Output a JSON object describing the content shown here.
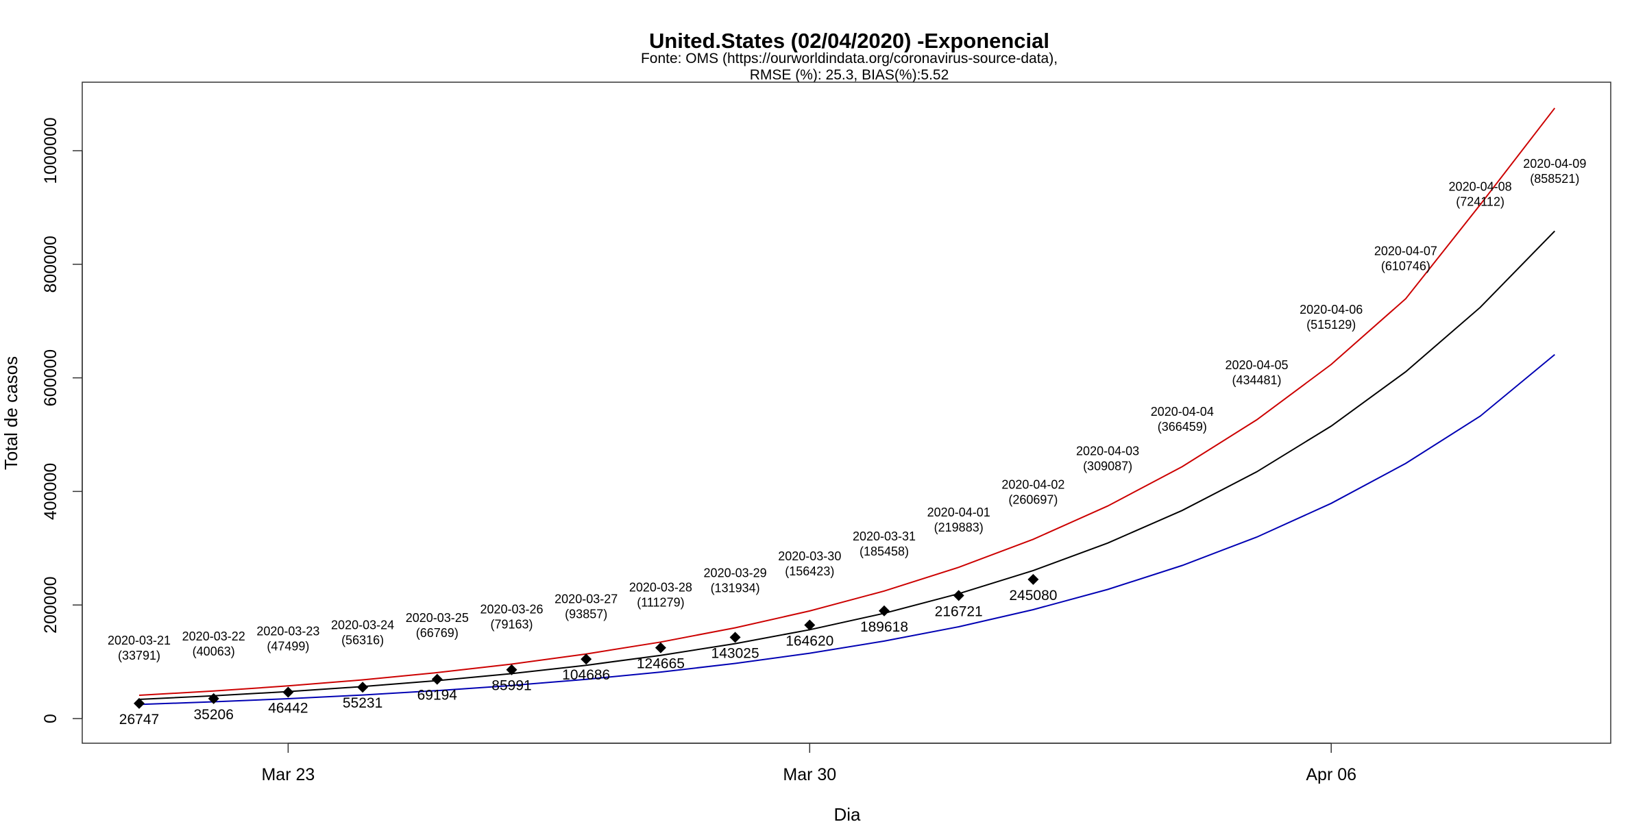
{
  "chart_data": {
    "type": "line",
    "title": "United.States (02/04/2020) -Exponencial",
    "subtitle_line1": "Fonte: OMS (https://ourworldindata.org/coronavirus-source-data),",
    "subtitle_line2": "RMSE (%): 25.3, BIAS(%):5.52",
    "xlabel": "Dia",
    "ylabel": "Total de casos",
    "x_start": "2020-03-21",
    "x_tick_labels": [
      {
        "date": "2020-03-23",
        "label": "Mar 23"
      },
      {
        "date": "2020-03-30",
        "label": "Mar 30"
      },
      {
        "date": "2020-04-06",
        "label": "Apr 06"
      }
    ],
    "y_ticks": [
      0,
      200000,
      400000,
      600000,
      800000,
      1000000
    ],
    "y_tick_labels": [
      "0",
      "200000",
      "400000",
      "600000",
      "800000",
      "1000000"
    ],
    "ylim": [
      -45000,
      1120000
    ],
    "observed": {
      "dates": [
        "2020-03-21",
        "2020-03-22",
        "2020-03-23",
        "2020-03-24",
        "2020-03-25",
        "2020-03-26",
        "2020-03-27",
        "2020-03-28",
        "2020-03-29",
        "2020-03-30",
        "2020-03-31",
        "2020-04-01",
        "2020-04-02"
      ],
      "values": [
        26747,
        35206,
        46442,
        55231,
        69194,
        85991,
        104686,
        124665,
        143025,
        164620,
        189618,
        216721,
        245080
      ],
      "labels": [
        "26747",
        "35206",
        "46442",
        "55231",
        "69194",
        "85991",
        "104686",
        "124665",
        "143025",
        "164620",
        "189618",
        "216721",
        "245080"
      ]
    },
    "predicted": {
      "dates": [
        "2020-03-21",
        "2020-03-22",
        "2020-03-23",
        "2020-03-24",
        "2020-03-25",
        "2020-03-26",
        "2020-03-27",
        "2020-03-28",
        "2020-03-29",
        "2020-03-30",
        "2020-03-31",
        "2020-04-01",
        "2020-04-02",
        "2020-04-03",
        "2020-04-04",
        "2020-04-05",
        "2020-04-06",
        "2020-04-07",
        "2020-04-08",
        "2020-04-09"
      ],
      "values": [
        33791,
        40063,
        47499,
        56316,
        66769,
        79163,
        93857,
        111279,
        131934,
        156423,
        185458,
        219883,
        260697,
        309087,
        366459,
        434481,
        515129,
        610746,
        724112,
        858521
      ],
      "labels": [
        {
          "date": "2020-03-21",
          "value": "(33791)"
        },
        {
          "date": "2020-03-22",
          "value": "(40063)"
        },
        {
          "date": "2020-03-23",
          "value": "(47499)"
        },
        {
          "date": "2020-03-24",
          "value": "(56316)"
        },
        {
          "date": "2020-03-25",
          "value": "(66769)"
        },
        {
          "date": "2020-03-26",
          "value": "(79163)"
        },
        {
          "date": "2020-03-27",
          "value": "(93857)"
        },
        {
          "date": "2020-03-28",
          "value": "(111279)"
        },
        {
          "date": "2020-03-29",
          "value": "(131934)"
        },
        {
          "date": "2020-03-30",
          "value": "(156423)"
        },
        {
          "date": "2020-03-31",
          "value": "(185458)"
        },
        {
          "date": "2020-04-01",
          "value": "(219883)"
        },
        {
          "date": "2020-04-02",
          "value": "(260697)"
        },
        {
          "date": "2020-04-03",
          "value": "(309087)"
        },
        {
          "date": "2020-04-04",
          "value": "(366459)"
        },
        {
          "date": "2020-04-05",
          "value": "(434481)"
        },
        {
          "date": "2020-04-06",
          "value": "(515129)"
        },
        {
          "date": "2020-04-07",
          "value": "(610746)"
        },
        {
          "date": "2020-04-08",
          "value": "(724112)"
        },
        {
          "date": "2020-04-09",
          "value": "(858521)"
        }
      ]
    },
    "upper_bound": {
      "color": "#cc0000",
      "values": [
        41000,
        48500,
        57500,
        68200,
        80900,
        95900,
        113700,
        134800,
        159800,
        189500,
        224600,
        266300,
        315700,
        374300,
        443700,
        526000,
        623600,
        739300,
        905000,
        1075000
      ]
    },
    "lower_bound": {
      "color": "#0000b3",
      "values": [
        24900,
        29500,
        35000,
        41500,
        49200,
        58300,
        69100,
        81900,
        97100,
        115100,
        136400,
        161700,
        191800,
        227400,
        269600,
        319600,
        379000,
        449300,
        532600,
        641000
      ]
    },
    "center_color": "#000000",
    "marker": "diamond",
    "grid": false
  }
}
